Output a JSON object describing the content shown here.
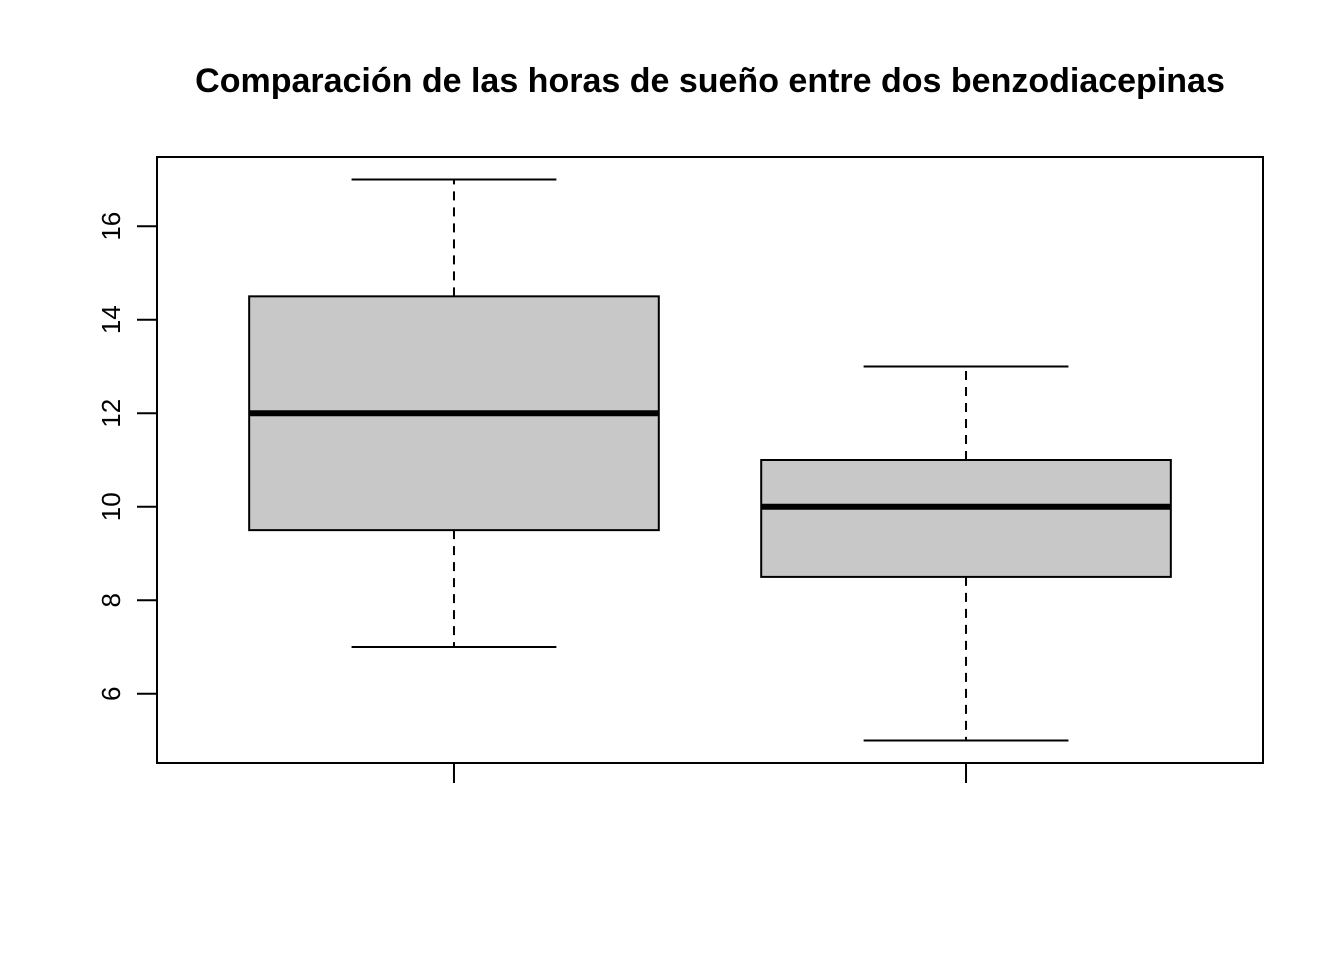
{
  "chart_data": {
    "type": "boxplot",
    "title": "Comparación de las horas de sueño entre dos benzodiacepinas",
    "xlabel": "",
    "ylabel": "",
    "ylim": [
      4.52,
      17.48
    ],
    "yticks": [
      6,
      8,
      10,
      12,
      14,
      16
    ],
    "xlim": [
      0.42,
      2.58
    ],
    "xticks": [
      1,
      2
    ],
    "xtick_labels": [
      "",
      ""
    ],
    "grid": false,
    "box_fill": "#c8c8c8",
    "groups": [
      {
        "position": 1,
        "min": 7,
        "q1": 9.5,
        "median": 12,
        "q3": 14.5,
        "max": 17
      },
      {
        "position": 2,
        "min": 5,
        "q1": 8.5,
        "median": 10,
        "q3": 11,
        "max": 13
      }
    ]
  }
}
